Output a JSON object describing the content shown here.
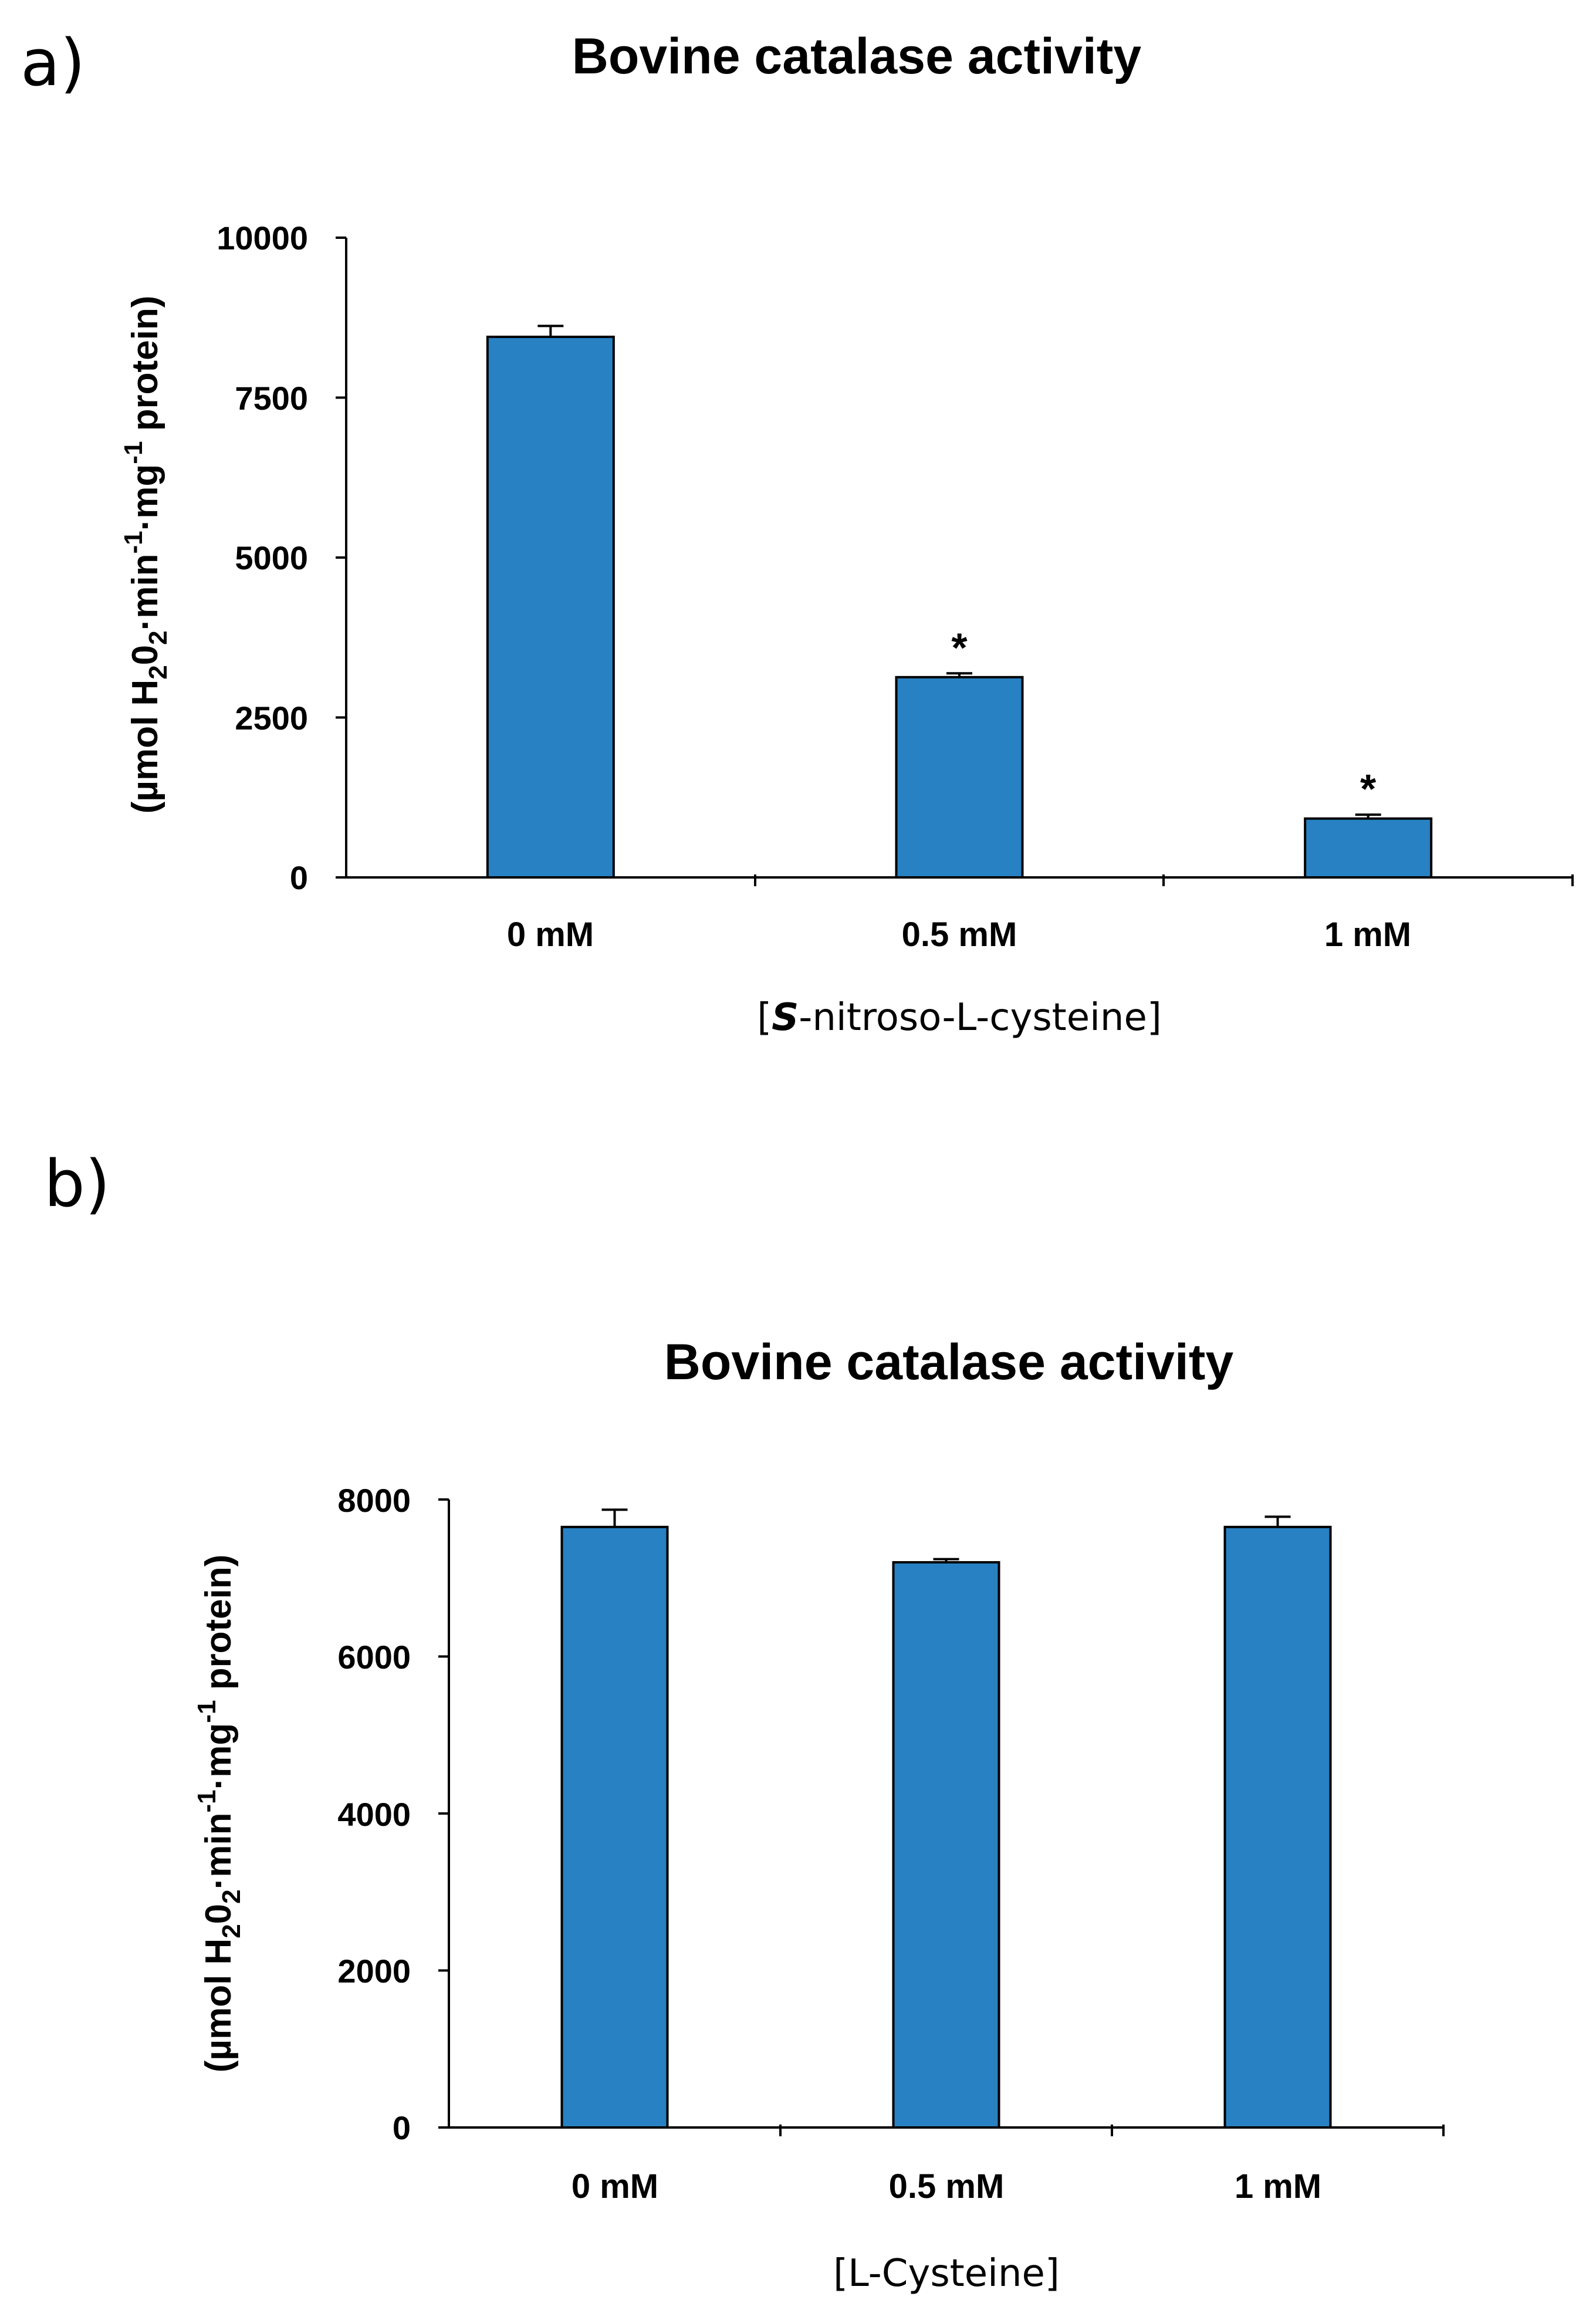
{
  "chart_data": [
    {
      "panel": "a)",
      "type": "bar",
      "title": "Bovine catalase activity",
      "ylabel": {
        "pre": "(µmol H",
        "sub1": "2",
        "mid1": "0",
        "sub2": "2",
        "mid2": "·min",
        "sup1": "-1",
        "mid3": "·mg",
        "sup2": "-1",
        "post": " protein)"
      },
      "xlabel": {
        "open": "[",
        "italic": "S",
        "rest": "-nitroso-L-cysteine]"
      },
      "categories": [
        "0 mM",
        "0.5 mM",
        "1 mM"
      ],
      "values": [
        8450,
        3130,
        920
      ],
      "errors": [
        170,
        60,
        60
      ],
      "significance": [
        "",
        "*",
        "*"
      ],
      "ylim": [
        0,
        10000
      ],
      "yticks": [
        "0",
        "2500",
        "5000",
        "7500",
        "10000"
      ],
      "bar_color": "#2781C2"
    },
    {
      "panel": "b)",
      "type": "bar",
      "title": "Bovine catalase activity",
      "ylabel": {
        "pre": "(µmol H",
        "sub1": "2",
        "mid1": "0",
        "sub2": "2",
        "mid2": "·min",
        "sup1": "-1",
        "mid3": "·mg",
        "sup2": "-1",
        "post": " protein)"
      },
      "xlabel": {
        "open": "[",
        "italic": "",
        "rest": "L-Cysteine]"
      },
      "categories": [
        "0 mM",
        "0.5 mM",
        "1 mM"
      ],
      "values": [
        7650,
        7200,
        7650
      ],
      "errors": [
        220,
        40,
        130
      ],
      "significance": [
        "",
        "",
        ""
      ],
      "ylim": [
        0,
        8000
      ],
      "yticks": [
        "0",
        "2000",
        "4000",
        "6000",
        "8000"
      ],
      "bar_color": "#2781C2"
    }
  ]
}
